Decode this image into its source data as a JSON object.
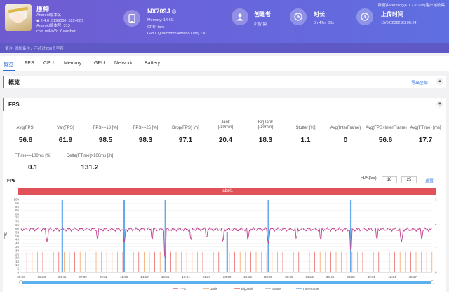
{
  "header": {
    "version": "数据由PerfDog(6.1.220128)客户端收集",
    "app": {
      "name": "原神",
      "android_version_label": "Android版本名:",
      "version_line": "2.4.0_5199000_5224067",
      "version_code_line": "Android版本号: 313",
      "package": "com.miHoYo.Yuanshen"
    },
    "device": {
      "name": "NX709J",
      "memory": "Memory: 14.6G",
      "cpu": "CPU: taro",
      "gpu": "GPU: Qualcomm Adreno (TM) 730"
    },
    "creator": {
      "title": "创建者",
      "value": "机智 猿"
    },
    "duration": {
      "title": "时长",
      "value": "0h 47m 33s"
    },
    "upload": {
      "title": "上传时间",
      "value": "15/02/2022 23:00:24"
    },
    "remark": "备注:  添加备注，不超过200个字符"
  },
  "tabs": [
    "概览",
    "FPS",
    "CPU",
    "Memory",
    "GPU",
    "Network",
    "Battery"
  ],
  "overview": {
    "title": "概览",
    "export": "导出全部"
  },
  "fps_section": {
    "title": "FPS",
    "metrics_row1": [
      {
        "label": "Avg(FPS)",
        "value": "56.6"
      },
      {
        "label": "Var(FPS)",
        "value": "61.9"
      },
      {
        "label": "FPS>=18 [%]",
        "value": "98.5"
      },
      {
        "label": "FPS>=25 [%]",
        "value": "98.3"
      },
      {
        "label": "Drop(FPS) [/h]",
        "value": "97.1"
      },
      {
        "label": "Jank\n(/10min)",
        "value": "20.4"
      },
      {
        "label": "BigJank\n(/10min)",
        "value": "18.3"
      },
      {
        "label": "Stutter [%]",
        "value": "1.1"
      },
      {
        "label": "Avg(InterFrame)",
        "value": "0"
      },
      {
        "label": "Avg(FPS+InterFrame)",
        "value": "56.6"
      },
      {
        "label": "Avg(FTime) [ms]",
        "value": "17.7"
      }
    ],
    "metrics_row2": [
      {
        "label": "FTime>=100ms [%]",
        "value": "0.1"
      },
      {
        "label": "Delta(FTime)>100ms [/h]",
        "value": "131.2"
      }
    ],
    "chart_title": "FPS",
    "fps_threshold_label": "FPS(>=)",
    "fps_threshold_1": "18",
    "fps_threshold_2": "25",
    "reset": "重置",
    "label_bar": "label1"
  },
  "chart_data": {
    "type": "line",
    "title": "FPS",
    "ylabel": "FPS",
    "ylim": [
      0,
      100
    ],
    "y2lim": [
      0,
      3
    ],
    "y_ticks": [
      "0",
      "5",
      "10",
      "15",
      "20",
      "25",
      "30",
      "35",
      "40",
      "45",
      "50",
      "55",
      "60",
      "65",
      "70",
      "75",
      "80",
      "85",
      "90",
      "95",
      "100"
    ],
    "y2_ticks": [
      "0",
      "1",
      "2",
      "3"
    ],
    "x_ticks": [
      "00:00",
      "02:23",
      "04:46",
      "07:09",
      "09:32",
      "11:55",
      "14:17",
      "16:41",
      "19:04",
      "21:27",
      "23:50",
      "26:13",
      "28:36",
      "30:59",
      "33:22",
      "35:45",
      "38:08",
      "40:31",
      "42:54",
      "45:17"
    ],
    "legend": [
      "FPS",
      "Jank",
      "BigJank",
      "Stutter",
      "InterFrame"
    ],
    "legend_colors": [
      "#c3408e",
      "#f08a3a",
      "#e23b3b",
      "#a0a0a0",
      "#4a9be8"
    ],
    "fps_level": 59,
    "fps_dip_times": [
      "03:00",
      "08:50",
      "11:55",
      "15:10",
      "16:41",
      "19:40",
      "21:27",
      "23:20",
      "26:13",
      "28:36",
      "31:50",
      "34:40",
      "38:08",
      "41:10",
      "44:00",
      "46:20"
    ],
    "fps_dip_values": [
      42,
      45,
      40,
      44,
      18,
      43,
      46,
      41,
      44,
      40,
      45,
      43,
      30,
      44,
      42,
      45
    ],
    "spike_times": [
      "04:46",
      "11:55",
      "16:41",
      "23:50",
      "28:36",
      "38:08"
    ],
    "spike_values": [
      100,
      100,
      100,
      55,
      100,
      100
    ]
  }
}
